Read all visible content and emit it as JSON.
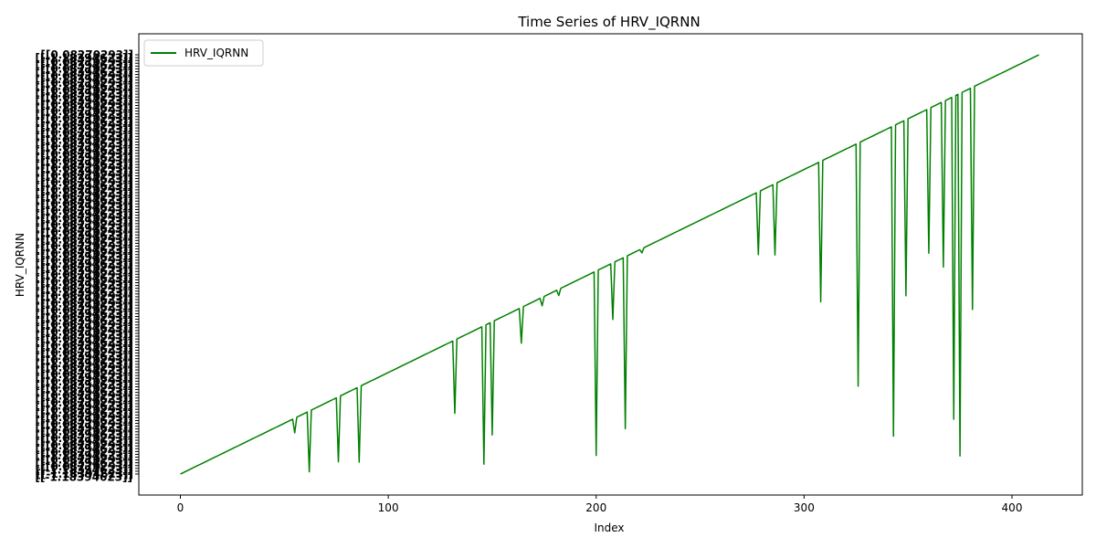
{
  "chart_data": {
    "type": "line",
    "title": "Time Series of HRV_IQRNN",
    "xlabel": "Index",
    "ylabel": "HRV_IQRNN",
    "xlim": [
      -20,
      433
    ],
    "xticks": [
      0,
      100,
      200,
      300,
      400
    ],
    "xtick_labels": [
      "0",
      "100",
      "200",
      "300",
      "400"
    ],
    "ytick_labels_note": "Overlapping categorical y tick labels, illegible; the readable fragments are shown below.",
    "ytick_labels_visible": [
      "[[0.08270293]]",
      "[[-1.18394623]]"
    ],
    "y_scale": "categorical (ranked)",
    "grid": false,
    "legend_position": "top-left",
    "color": "#008000",
    "series": [
      {
        "name": "HRV_IQRNN",
        "x_range": [
          0,
          413
        ],
        "baseline_rank": "rises linearly from bottom to top with index",
        "dips": [
          {
            "x": 55,
            "depth": 0.035
          },
          {
            "x": 62,
            "depth": 0.145
          },
          {
            "x": 76,
            "depth": 0.155
          },
          {
            "x": 86,
            "depth": 0.18
          },
          {
            "x": 132,
            "depth": 0.175
          },
          {
            "x": 146,
            "depth": 0.33
          },
          {
            "x": 150,
            "depth": 0.27
          },
          {
            "x": 164,
            "depth": 0.085
          },
          {
            "x": 174,
            "depth": 0.02
          },
          {
            "x": 182,
            "depth": 0.015
          },
          {
            "x": 200,
            "depth": 0.44
          },
          {
            "x": 208,
            "depth": 0.135
          },
          {
            "x": 214,
            "depth": 0.41
          },
          {
            "x": 222,
            "depth": 0.01
          },
          {
            "x": 278,
            "depth": 0.15
          },
          {
            "x": 286,
            "depth": 0.17
          },
          {
            "x": 308,
            "depth": 0.335
          },
          {
            "x": 326,
            "depth": 0.58
          },
          {
            "x": 343,
            "depth": 0.74
          },
          {
            "x": 349,
            "depth": 0.42
          },
          {
            "x": 360,
            "depth": 0.345
          },
          {
            "x": 367,
            "depth": 0.395
          },
          {
            "x": 372,
            "depth": 0.77
          },
          {
            "x": 375,
            "depth": 0.865
          },
          {
            "x": 381,
            "depth": 0.53
          }
        ]
      }
    ]
  }
}
